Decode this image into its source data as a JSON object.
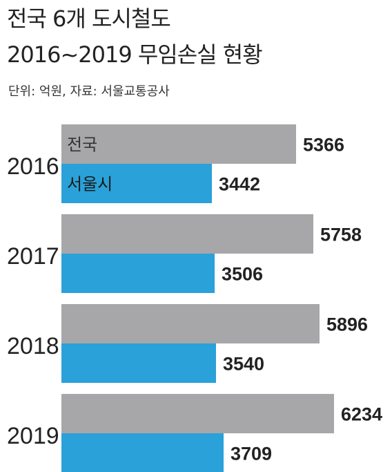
{
  "header": {
    "title_line1": "전국 6개 도시철도",
    "title_line2": "2016~2019 무임손실 현황",
    "subtitle": "단위: 억원, 자료: 서울교통공사"
  },
  "colors": {
    "national": "#a7a7a9",
    "seoul": "#2aa1d8",
    "national_label": "#333333",
    "seoul_label": "#1a1a1a"
  },
  "chart_data": {
    "type": "bar",
    "orientation": "horizontal",
    "categories": [
      "2016",
      "2017",
      "2018",
      "2019"
    ],
    "series": [
      {
        "name": "전국",
        "values": [
          5366,
          5758,
          5896,
          6234
        ]
      },
      {
        "name": "서울시",
        "values": [
          3442,
          3506,
          3540,
          3709
        ]
      }
    ],
    "unit": "억원",
    "grid": false,
    "series_labels_inside_first_group": true
  }
}
